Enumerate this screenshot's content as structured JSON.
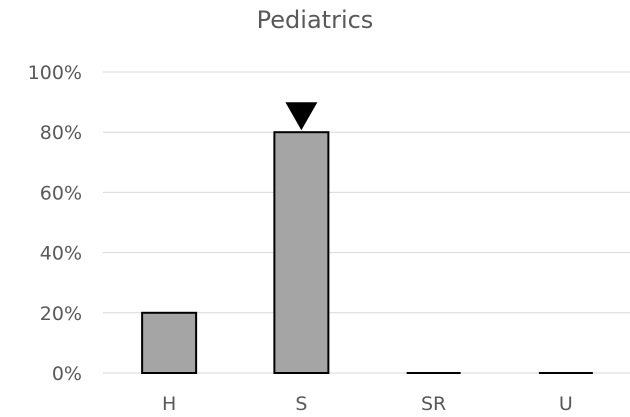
{
  "chart_data": {
    "type": "bar",
    "title": "Pediatrics",
    "categories": [
      "H",
      "S",
      "SR",
      "U"
    ],
    "values": [
      20,
      80,
      0,
      0
    ],
    "ylim": [
      0,
      100
    ],
    "yticks": [
      "0%",
      "20%",
      "40%",
      "60%",
      "80%",
      "100%"
    ],
    "xlabel": "",
    "ylabel": "",
    "grid": true,
    "legend": "none",
    "colors": {
      "bar_fill": "#a5a5a5",
      "bar_stroke": "#000000",
      "gridline": "#d9d9d9",
      "text": "#595959"
    },
    "annotation": {
      "type": "down-triangle-marker",
      "category": "S",
      "color": "#000000"
    }
  }
}
